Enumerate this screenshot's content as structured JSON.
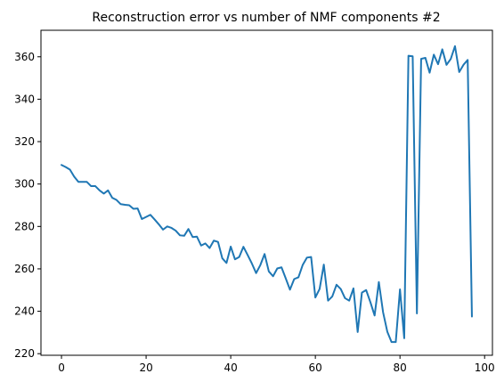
{
  "chart_data": {
    "type": "line",
    "title": "Reconstruction error vs number of NMF components #2",
    "xlabel": "",
    "ylabel": "",
    "xlim": [
      -4.85,
      101.85
    ],
    "ylim": [
      219.25,
      372.5
    ],
    "x_ticks": [
      0,
      20,
      40,
      60,
      80,
      100
    ],
    "y_ticks": [
      220,
      240,
      260,
      280,
      300,
      320,
      340,
      360
    ],
    "grid": false,
    "legend": "none",
    "series": [
      {
        "color": "#1f77b4",
        "x": [
          0,
          1,
          2,
          3,
          4,
          5,
          6,
          7,
          8,
          9,
          10,
          11,
          12,
          13,
          14,
          15,
          16,
          17,
          18,
          19,
          20,
          21,
          22,
          23,
          24,
          25,
          26,
          27,
          28,
          29,
          30,
          31,
          32,
          33,
          34,
          35,
          36,
          37,
          38,
          39,
          40,
          41,
          42,
          43,
          44,
          45,
          46,
          47,
          48,
          49,
          50,
          51,
          52,
          53,
          54,
          55,
          56,
          57,
          58,
          59,
          60,
          61,
          62,
          63,
          64,
          65,
          66,
          67,
          68,
          69,
          70,
          71,
          72,
          73,
          74,
          75,
          76,
          77,
          78,
          79,
          80,
          81,
          82,
          83,
          84,
          85,
          86,
          87,
          88,
          89,
          90,
          91,
          92,
          93,
          94,
          95,
          96,
          97
        ],
        "values": [
          309,
          308,
          306.8,
          303.5,
          301,
          301,
          301,
          299,
          299,
          297,
          295.5,
          297,
          293.5,
          292.5,
          290.5,
          290.2,
          290,
          288.3,
          288.5,
          283.5,
          284.5,
          285.5,
          283.3,
          281,
          278.5,
          280,
          279.3,
          278,
          275.8,
          275.6,
          278.8,
          275,
          275.2,
          271,
          272,
          269.8,
          273.3,
          272.7,
          265,
          262.8,
          270.5,
          264.5,
          265.6,
          270.4,
          266.5,
          262.5,
          258,
          261.8,
          267,
          258.8,
          256.5,
          260.2,
          260.7,
          255.5,
          250.2,
          255.2,
          256,
          261.8,
          265.3,
          265.6,
          246.5,
          250.5,
          262,
          245,
          247,
          252.5,
          250.5,
          246.2,
          245,
          250.8,
          230.2,
          248.8,
          250,
          244.3,
          238,
          253.8,
          239.6,
          230.4,
          225.5,
          225.5,
          250.3,
          227.3,
          360.5,
          360.2,
          239,
          359,
          359.5,
          352.5,
          361,
          356.5,
          363.5,
          356.2,
          359,
          365,
          352.8,
          356.2,
          358.5,
          237.5
        ]
      }
    ]
  }
}
